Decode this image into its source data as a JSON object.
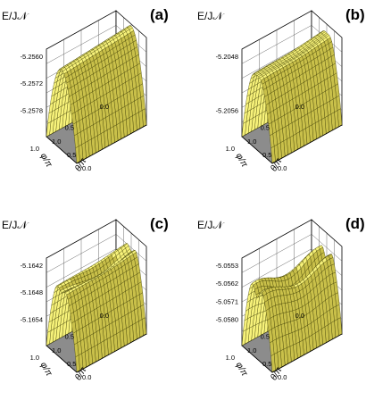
{
  "figure": {
    "surface_color": "#f7f27a",
    "surface_shade_color": "#c9c04a",
    "mesh_color": "#3a3a00",
    "floor_color": "#8c8c8c",
    "wall_color": "#ffffff",
    "grid_color": "#444444"
  },
  "chart_data": [
    {
      "type": "surface3d",
      "panel_label": "(a)",
      "zlabel": "E/J𝒩",
      "xlabel": "φ/π",
      "ylabel": "θ/π",
      "x_ticks": [
        "0.0",
        "0.5",
        "1.0"
      ],
      "y_ticks": [
        "0.0",
        "0.5",
        "1.0"
      ],
      "z_ticks": [
        "-5.2560",
        "-5.2572",
        "-5.2578"
      ],
      "x_range": [
        0,
        1
      ],
      "y_range": [
        0,
        1
      ],
      "surface": {
        "shape": "single-ridge",
        "dip": 0.0,
        "lateral_peaks": 0.0
      }
    },
    {
      "type": "surface3d",
      "panel_label": "(b)",
      "zlabel": "E/J𝒩",
      "xlabel": "φ/π",
      "ylabel": "θ/π",
      "x_ticks": [
        "0.0",
        "0.5",
        "1.0"
      ],
      "y_ticks": [
        "0.0",
        "0.5",
        "1.0"
      ],
      "z_ticks": [
        "-5.2048",
        "-5.2056"
      ],
      "x_range": [
        0,
        1
      ],
      "y_range": [
        0,
        1
      ],
      "surface": {
        "shape": "twin-peak",
        "dip": 0.12,
        "lateral_peaks": 0.0
      }
    },
    {
      "type": "surface3d",
      "panel_label": "(c)",
      "zlabel": "E/J𝒩",
      "xlabel": "φ/π",
      "ylabel": "θ/π",
      "x_ticks": [
        "0.0",
        "0.5",
        "1.0"
      ],
      "y_ticks": [
        "0.0",
        "0.5",
        "1.0"
      ],
      "z_ticks": [
        "-5.1642",
        "-5.1648",
        "-5.1654"
      ],
      "x_range": [
        0,
        1
      ],
      "y_range": [
        0,
        1
      ],
      "surface": {
        "shape": "twin-peak",
        "dip": 0.28,
        "lateral_peaks": 0.0
      }
    },
    {
      "type": "surface3d",
      "panel_label": "(d)",
      "zlabel": "E/J𝒩",
      "xlabel": "φ/π",
      "ylabel": "θ/π",
      "x_ticks": [
        "0.0",
        "0.5",
        "1.0"
      ],
      "y_ticks": [
        "0.0",
        "0.5",
        "1.0"
      ],
      "z_ticks": [
        "-5.0553",
        "-5.0562",
        "-5.0571",
        "-5.0580"
      ],
      "x_range": [
        0,
        1
      ],
      "y_range": [
        0,
        1
      ],
      "surface": {
        "shape": "multi-peak",
        "dip": 0.45,
        "lateral_peaks": 0.6
      }
    }
  ]
}
